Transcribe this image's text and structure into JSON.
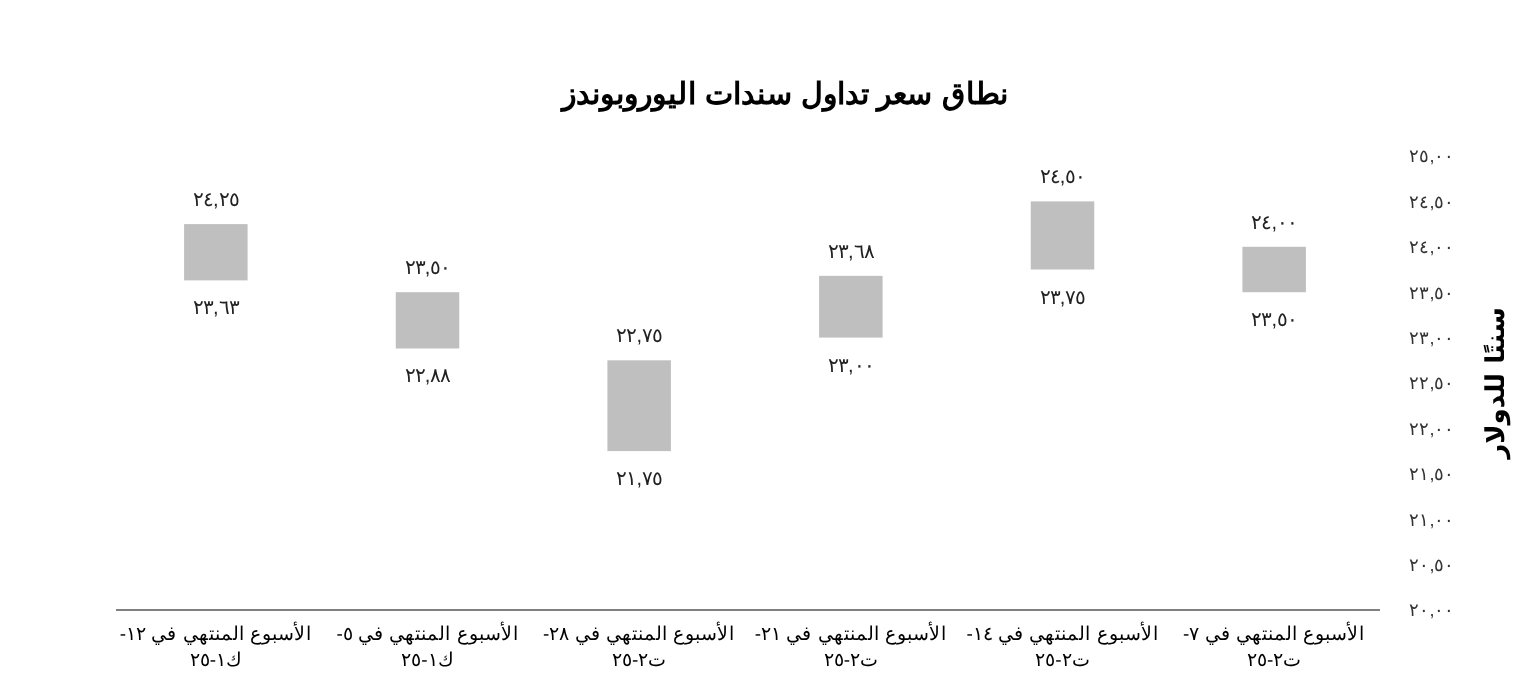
{
  "chart_data": {
    "type": "bar",
    "title": "نطاق سعر تداول سندات اليوروبوندز",
    "ylabel": "سنتًا للدولار",
    "categories": [
      "الأسبوع المنتهي في ١٢-ك١-٢٥",
      "الأسبوع المنتهي في ٥-ك١-٢٥",
      "الأسبوع المنتهي في ٢٨-ت٢-٢٥",
      "الأسبوع المنتهي في ٢١-ت٢-٢٥",
      "الأسبوع المنتهي في ١٤-ت٢-٢٥",
      "الأسبوع المنتهي في ٧-ت٢-٢٥"
    ],
    "base": [
      23.63,
      22.88,
      21.75,
      23.0,
      23.75,
      23.5
    ],
    "values": [
      0.62,
      0.62,
      1.0,
      0.68,
      0.75,
      0.5
    ],
    "color": "#bfbfbf",
    "ylim": [
      20,
      25
    ],
    "yticks": [
      {
        "value": 20,
        "label": "٢٠,٠٠"
      },
      {
        "value": 20.5,
        "label": "٢٠,٥٠"
      },
      {
        "value": 21,
        "label": "٢١,٠٠"
      },
      {
        "value": 21.5,
        "label": "٢١,٥٠"
      },
      {
        "value": 22,
        "label": "٢٢,٠٠"
      },
      {
        "value": 22.5,
        "label": "٢٢,٥٠"
      },
      {
        "value": 23,
        "label": "٢٣,٠٠"
      },
      {
        "value": 23.5,
        "label": "٢٣,٥٠"
      },
      {
        "value": 24,
        "label": "٢٤,٠٠"
      },
      {
        "value": 24.5,
        "label": "٢٤,٥٠"
      },
      {
        "value": 25,
        "label": "٢٥,٠٠"
      }
    ],
    "annotations": [
      {
        "text": "٢٤,٢٥",
        "x": "الأسبوع المنتهي في ١٢-ك١-٢٥",
        "y": 24.25
      },
      {
        "text": "٢٣,٦٣",
        "x": "الأسبوع المنتهي في ١٢-ك١-٢٥",
        "y": 23.63
      },
      {
        "text": "٢٣,٥٠",
        "x": "الأسبوع المنتهي في ٥-ك١-٢٥",
        "y": 23.5
      },
      {
        "text": "٢٢,٨٨",
        "x": "الأسبوع المنتهي في ٥-ك١-٢٥",
        "y": 22.88
      },
      {
        "text": "٢٢,٧٥",
        "x": "الأسبوع المنتهي في ٢٨-ت٢-٢٥",
        "y": 22.75
      },
      {
        "text": "٢١,٧٥",
        "x": "الأسبوع المنتهي في ٢٨-ت٢-٢٥",
        "y": 21.75
      },
      {
        "text": "٢٣,٦٨",
        "x": "الأسبوع المنتهي في ٢١-ت٢-٢٥",
        "y": 23.68
      },
      {
        "text": "٢٣,٠٠",
        "x": "الأسبوع المنتهي في ٢١-ت٢-٢٥",
        "y": 23.0
      },
      {
        "text": "٢٤,٥٠",
        "x": "الأسبوع المنتهي في ١٤-ت٢-٢٥",
        "y": 24.5
      },
      {
        "text": "٢٣,٧٥",
        "x": "الأسبوع المنتهي في ١٤-ت٢-٢٥",
        "y": 23.75
      },
      {
        "text": "٢٤,٠٠",
        "x": "الأسبوع المنتهي في ٧-ت٢-٢٥",
        "y": 24.0
      },
      {
        "text": "٢٣,٥٠",
        "x": "الأسبوع المنتهي في ٧-ت٢-٢٥",
        "y": 23.5
      }
    ]
  }
}
